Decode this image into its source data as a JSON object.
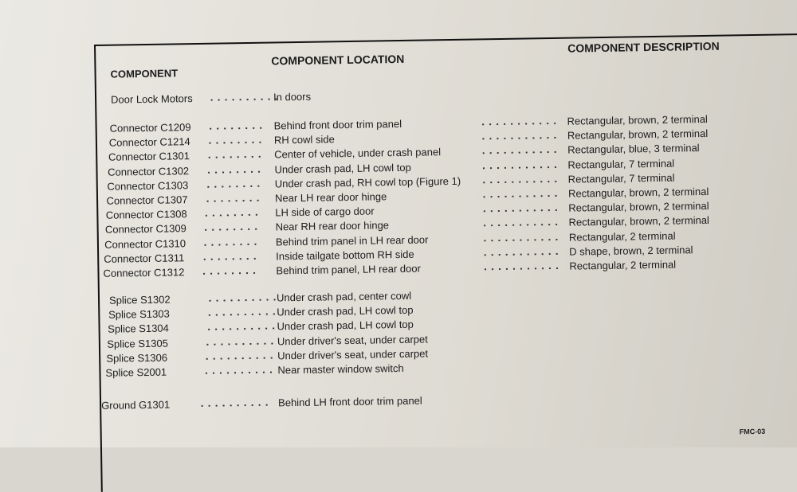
{
  "header": {
    "component": "COMPONENT",
    "location": "COMPONENT LOCATION",
    "description": "COMPONENT DESCRIPTION"
  },
  "groups": [
    [
      {
        "component": "Door Lock Motors",
        "location": "In doors"
      }
    ],
    [
      {
        "component": "Connector C1209",
        "location": "Behind front door trim panel",
        "description": "Rectangular, brown, 2 terminal"
      },
      {
        "component": "Connector C1214",
        "location": "RH cowl side",
        "description": "Rectangular, brown, 2 terminal"
      },
      {
        "component": "Connector C1301",
        "location": "Center of vehicle, under crash panel",
        "description": "Rectangular, blue, 3 terminal"
      },
      {
        "component": "Connector C1302",
        "location": "Under crash pad, LH cowl top",
        "description": "Rectangular, 7 terminal"
      },
      {
        "component": "Connector C1303",
        "location": "Under crash pad, RH cowl top (Figure 1)",
        "description": "Rectangular, 7 terminal"
      },
      {
        "component": "Connector C1307",
        "location": "Near LH rear door hinge",
        "description": "Rectangular, brown, 2 terminal"
      },
      {
        "component": "Connector C1308",
        "location": "LH side of cargo door",
        "description": "Rectangular, brown, 2 terminal"
      },
      {
        "component": "Connector C1309",
        "location": "Near RH rear door hinge",
        "description": "Rectangular, brown, 2 terminal"
      },
      {
        "component": "Connector C1310",
        "location": "Behind trim panel in LH rear door",
        "description": "Rectangular, 2 terminal"
      },
      {
        "component": "Connector C1311",
        "location": "Inside tailgate bottom RH side",
        "description": "D shape, brown, 2 terminal"
      },
      {
        "component": "Connector C1312",
        "location": "Behind trim panel, LH rear door",
        "description": "Rectangular, 2 terminal"
      }
    ],
    [
      {
        "component": "Splice S1302",
        "location": "Under crash pad, center cowl"
      },
      {
        "component": "Splice S1303",
        "location": "Under crash pad, LH cowl top"
      },
      {
        "component": "Splice S1304",
        "location": "Under crash pad, LH cowl top"
      },
      {
        "component": "Splice S1305",
        "location": "Under driver's seat, under carpet"
      },
      {
        "component": "Splice S1306",
        "location": "Under driver's seat, under carpet"
      },
      {
        "component": "Splice S2001",
        "location": "Near master window switch"
      }
    ],
    [
      {
        "component": "Ground G1301",
        "location": "Behind LH front door trim panel"
      }
    ]
  ],
  "footer": "FMC-03"
}
